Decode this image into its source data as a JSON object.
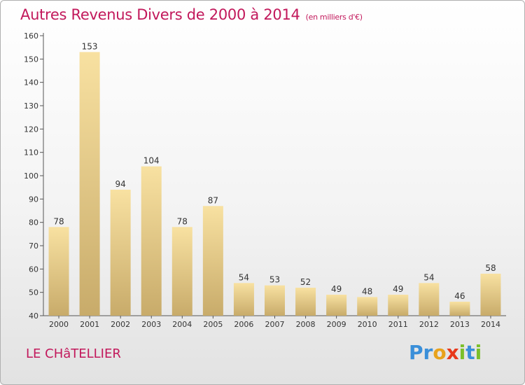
{
  "title": "Autres Revenus Divers de 2000 à 2014",
  "unit": "(en milliers d'€)",
  "place": "LE CHâTELLIER",
  "logo": {
    "letters": [
      "P",
      "r",
      "o",
      "x",
      "i",
      "t",
      "i"
    ],
    "colors": [
      "#3a8fd9",
      "#3a8fd9",
      "#e8a21b",
      "#e8381b",
      "#7bbf2a",
      "#3a8fd9",
      "#7bbf2a"
    ]
  },
  "colors": {
    "accent": "#c2185b",
    "bar_light": "#f8e1a1",
    "bar_dark": "#c8ab6a"
  },
  "chart_data": {
    "type": "bar",
    "categories": [
      "2000",
      "2001",
      "2002",
      "2003",
      "2004",
      "2005",
      "2006",
      "2007",
      "2008",
      "2009",
      "2010",
      "2011",
      "2012",
      "2013",
      "2014"
    ],
    "values": [
      78,
      153,
      94,
      104,
      78,
      87,
      54,
      53,
      52,
      49,
      48,
      49,
      54,
      46,
      58
    ],
    "yticks": [
      40,
      50,
      60,
      70,
      80,
      90,
      100,
      110,
      120,
      130,
      140,
      150,
      160
    ],
    "ylim": [
      40,
      160
    ],
    "grid": false,
    "data_labels": true
  }
}
